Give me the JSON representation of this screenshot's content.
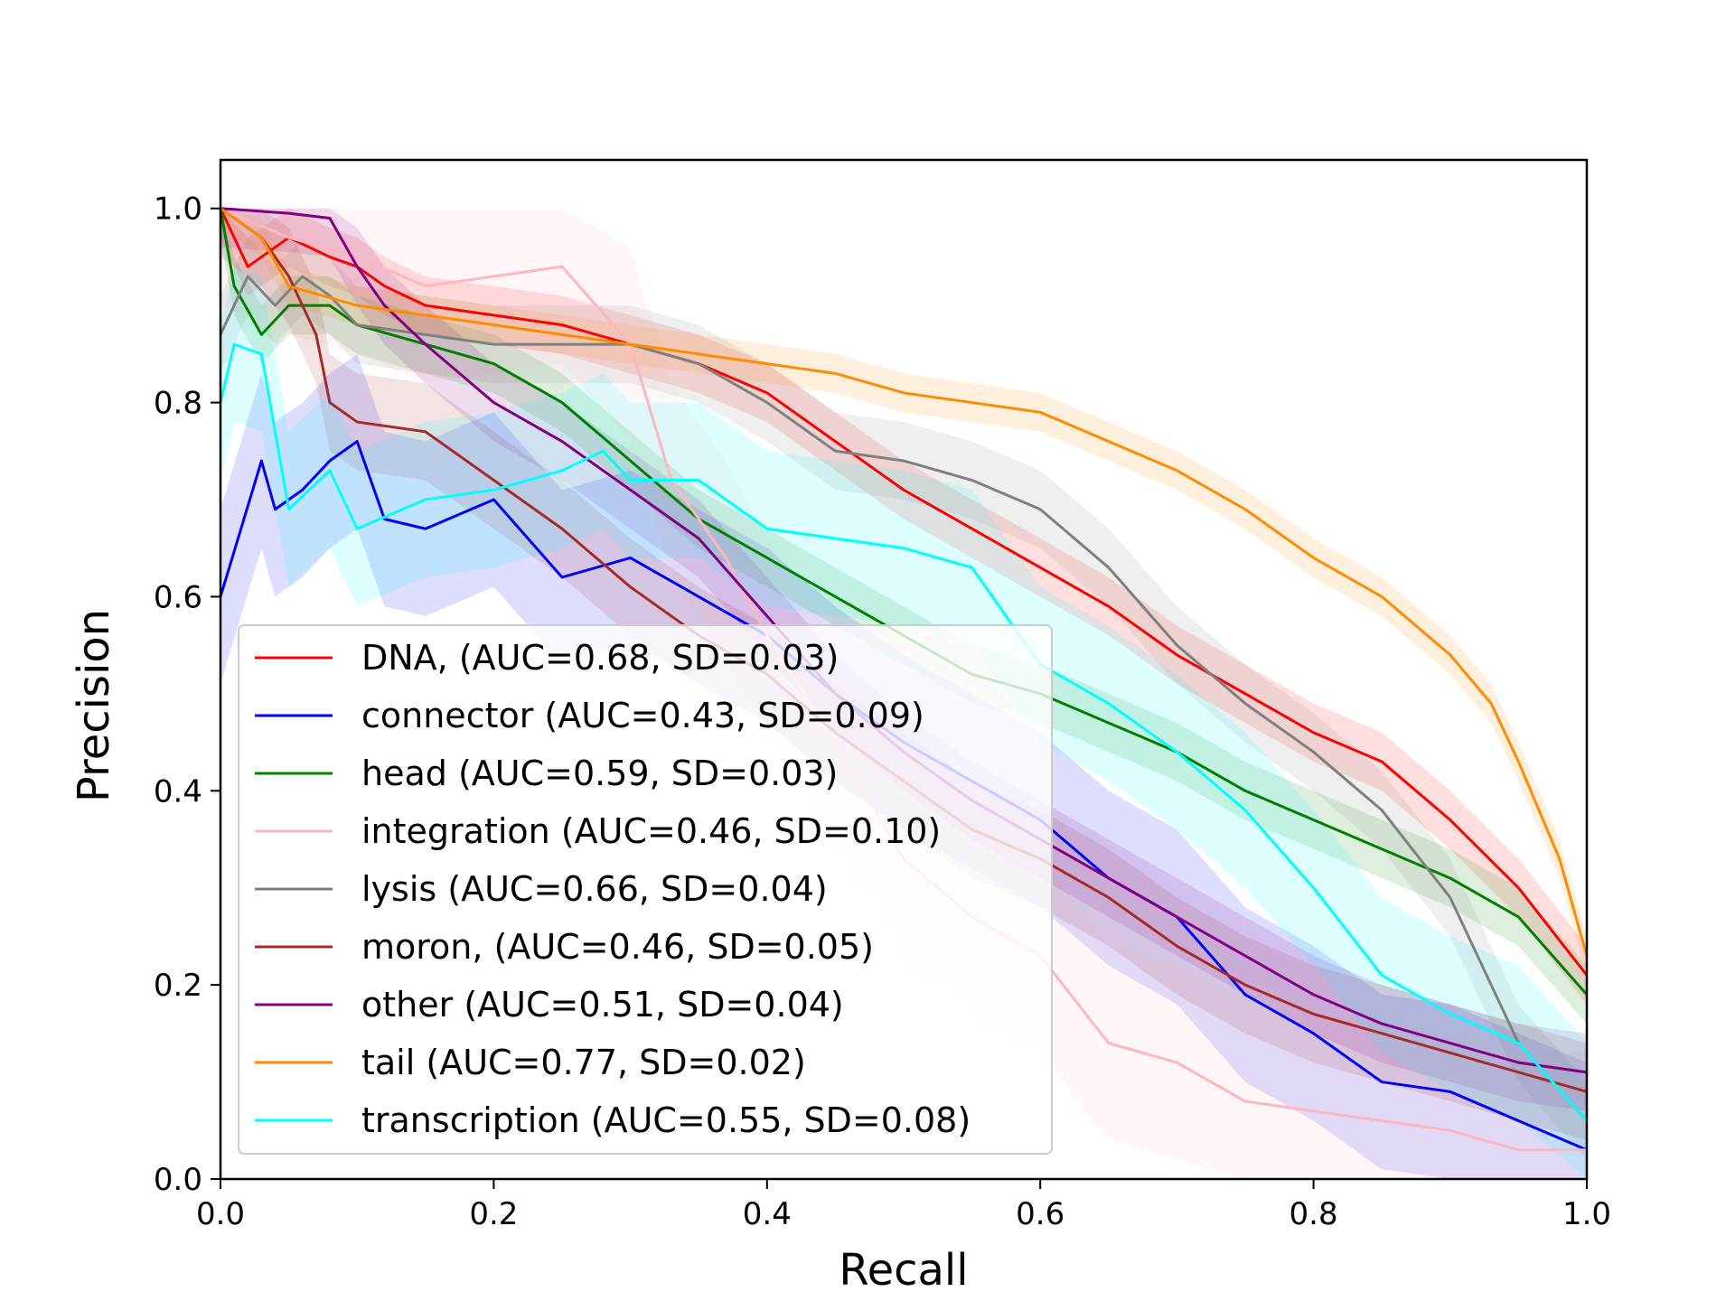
{
  "chart_data": {
    "type": "line",
    "title": "",
    "xlabel": "Recall",
    "ylabel": "Precision",
    "xlim": [
      0.0,
      1.0
    ],
    "ylim": [
      0.0,
      1.05
    ],
    "xticks": [
      "0.0",
      "0.2",
      "0.4",
      "0.6",
      "0.8",
      "1.0"
    ],
    "yticks": [
      "0.0",
      "0.2",
      "0.4",
      "0.6",
      "0.8",
      "1.0"
    ],
    "grid": false,
    "legend_position": "lower-left",
    "series": [
      {
        "name": "DNA, (AUC=0.68, SD=0.03)",
        "color": "#ff0000",
        "sd": 0.03,
        "x": [
          0.0,
          0.02,
          0.05,
          0.08,
          0.1,
          0.12,
          0.15,
          0.2,
          0.25,
          0.3,
          0.35,
          0.4,
          0.45,
          0.5,
          0.55,
          0.6,
          0.65,
          0.7,
          0.75,
          0.8,
          0.85,
          0.9,
          0.95,
          1.0
        ],
        "y": [
          1.0,
          0.94,
          0.97,
          0.95,
          0.94,
          0.92,
          0.9,
          0.89,
          0.88,
          0.86,
          0.84,
          0.81,
          0.76,
          0.71,
          0.67,
          0.63,
          0.59,
          0.54,
          0.5,
          0.46,
          0.43,
          0.37,
          0.3,
          0.21
        ]
      },
      {
        "name": "connector (AUC=0.43, SD=0.09)",
        "color": "#0000ff",
        "sd": 0.09,
        "x": [
          0.0,
          0.03,
          0.04,
          0.06,
          0.08,
          0.1,
          0.12,
          0.15,
          0.2,
          0.25,
          0.3,
          0.35,
          0.4,
          0.45,
          0.5,
          0.55,
          0.6,
          0.65,
          0.7,
          0.75,
          0.8,
          0.85,
          0.9,
          0.95,
          1.0
        ],
        "y": [
          0.6,
          0.74,
          0.69,
          0.71,
          0.74,
          0.76,
          0.68,
          0.67,
          0.7,
          0.62,
          0.64,
          0.6,
          0.56,
          0.5,
          0.45,
          0.41,
          0.37,
          0.31,
          0.27,
          0.19,
          0.15,
          0.1,
          0.09,
          0.06,
          0.03
        ]
      },
      {
        "name": "head (AUC=0.59, SD=0.03)",
        "color": "#008000",
        "sd": 0.03,
        "x": [
          0.0,
          0.01,
          0.03,
          0.05,
          0.08,
          0.1,
          0.15,
          0.2,
          0.25,
          0.3,
          0.35,
          0.4,
          0.45,
          0.5,
          0.55,
          0.6,
          0.65,
          0.7,
          0.75,
          0.8,
          0.85,
          0.9,
          0.95,
          1.0
        ],
        "y": [
          1.0,
          0.92,
          0.87,
          0.9,
          0.9,
          0.88,
          0.86,
          0.84,
          0.8,
          0.74,
          0.68,
          0.64,
          0.6,
          0.56,
          0.52,
          0.5,
          0.47,
          0.44,
          0.4,
          0.37,
          0.34,
          0.31,
          0.27,
          0.19
        ]
      },
      {
        "name": "integration (AUC=0.46, SD=0.10)",
        "color": "#ffb6c1",
        "sd": 0.1,
        "x": [
          0.0,
          0.05,
          0.1,
          0.15,
          0.2,
          0.25,
          0.3,
          0.33,
          0.37,
          0.4,
          0.45,
          0.5,
          0.55,
          0.6,
          0.65,
          0.7,
          0.75,
          0.8,
          0.85,
          0.9,
          0.95,
          1.0
        ],
        "y": [
          1.0,
          0.97,
          0.95,
          0.92,
          0.93,
          0.94,
          0.86,
          0.72,
          0.64,
          0.56,
          0.45,
          0.33,
          0.27,
          0.23,
          0.14,
          0.12,
          0.08,
          0.07,
          0.06,
          0.05,
          0.03,
          0.03
        ]
      },
      {
        "name": "lysis (AUC=0.66, SD=0.04)",
        "color": "#808080",
        "sd": 0.04,
        "x": [
          0.0,
          0.02,
          0.04,
          0.06,
          0.08,
          0.1,
          0.15,
          0.2,
          0.25,
          0.3,
          0.35,
          0.4,
          0.45,
          0.5,
          0.55,
          0.6,
          0.65,
          0.7,
          0.75,
          0.8,
          0.85,
          0.9,
          0.95,
          1.0
        ],
        "y": [
          0.87,
          0.93,
          0.9,
          0.93,
          0.91,
          0.88,
          0.87,
          0.86,
          0.86,
          0.86,
          0.84,
          0.8,
          0.75,
          0.74,
          0.72,
          0.69,
          0.63,
          0.55,
          0.49,
          0.44,
          0.38,
          0.29,
          0.14,
          0.06
        ]
      },
      {
        "name": "moron, (AUC=0.46, SD=0.05)",
        "color": "#a52a2a",
        "sd": 0.05,
        "x": [
          0.0,
          0.03,
          0.05,
          0.07,
          0.08,
          0.1,
          0.15,
          0.2,
          0.25,
          0.3,
          0.35,
          0.4,
          0.45,
          0.5,
          0.55,
          0.6,
          0.65,
          0.7,
          0.75,
          0.8,
          0.85,
          0.9,
          0.95,
          1.0
        ],
        "y": [
          1.0,
          0.97,
          0.93,
          0.87,
          0.8,
          0.78,
          0.77,
          0.72,
          0.67,
          0.61,
          0.56,
          0.52,
          0.46,
          0.41,
          0.36,
          0.33,
          0.29,
          0.24,
          0.2,
          0.17,
          0.15,
          0.13,
          0.11,
          0.09
        ]
      },
      {
        "name": "other (AUC=0.51, SD=0.04)",
        "color": "#800080",
        "sd": 0.04,
        "x": [
          0.0,
          0.05,
          0.08,
          0.1,
          0.12,
          0.15,
          0.2,
          0.25,
          0.3,
          0.35,
          0.4,
          0.45,
          0.5,
          0.55,
          0.6,
          0.65,
          0.7,
          0.75,
          0.8,
          0.85,
          0.9,
          0.95,
          1.0
        ],
        "y": [
          1.0,
          0.995,
          0.99,
          0.94,
          0.9,
          0.86,
          0.8,
          0.76,
          0.71,
          0.66,
          0.58,
          0.5,
          0.44,
          0.39,
          0.35,
          0.31,
          0.27,
          0.23,
          0.19,
          0.16,
          0.14,
          0.12,
          0.11
        ]
      },
      {
        "name": "tail (AUC=0.77, SD=0.02)",
        "color": "#ff8c00",
        "sd": 0.02,
        "x": [
          0.0,
          0.03,
          0.05,
          0.1,
          0.15,
          0.2,
          0.25,
          0.3,
          0.35,
          0.4,
          0.45,
          0.5,
          0.55,
          0.6,
          0.65,
          0.7,
          0.75,
          0.8,
          0.85,
          0.9,
          0.93,
          0.95,
          0.98,
          1.0
        ],
        "y": [
          1.0,
          0.97,
          0.92,
          0.9,
          0.89,
          0.88,
          0.87,
          0.86,
          0.85,
          0.84,
          0.83,
          0.81,
          0.8,
          0.79,
          0.76,
          0.73,
          0.69,
          0.64,
          0.6,
          0.54,
          0.49,
          0.43,
          0.33,
          0.23
        ]
      },
      {
        "name": "transcription (AUC=0.55, SD=0.08)",
        "color": "#00ffff",
        "sd": 0.08,
        "x": [
          0.0,
          0.01,
          0.03,
          0.05,
          0.08,
          0.1,
          0.15,
          0.2,
          0.25,
          0.28,
          0.3,
          0.35,
          0.4,
          0.45,
          0.5,
          0.55,
          0.6,
          0.65,
          0.7,
          0.75,
          0.8,
          0.85,
          0.9,
          0.95,
          1.0
        ],
        "y": [
          0.8,
          0.86,
          0.85,
          0.69,
          0.73,
          0.67,
          0.7,
          0.71,
          0.73,
          0.75,
          0.72,
          0.72,
          0.67,
          0.66,
          0.65,
          0.63,
          0.53,
          0.49,
          0.44,
          0.38,
          0.3,
          0.21,
          0.17,
          0.14,
          0.06
        ]
      }
    ]
  }
}
